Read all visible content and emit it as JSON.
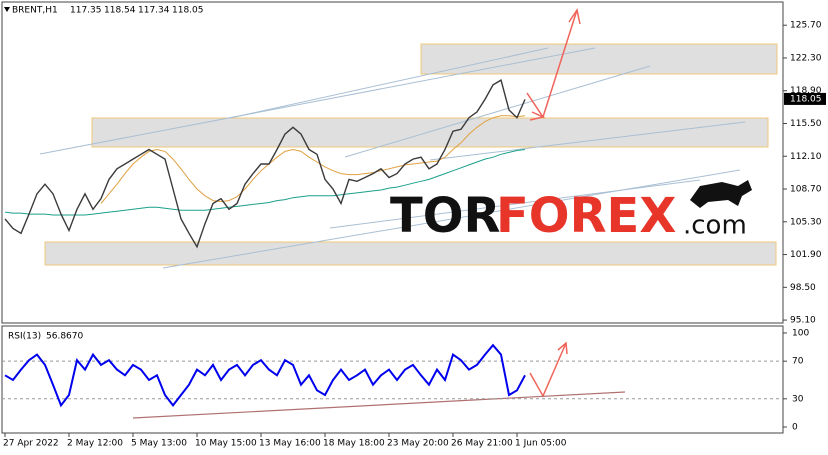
{
  "chart_data": [
    {
      "type": "line",
      "symbol": "BRENT,H1",
      "ohlc": [
        117.35,
        118.54,
        117.34,
        118.05
      ],
      "ylim": [
        94.9,
        127.9
      ],
      "yticks": [
        {
          "value": 125.7,
          "label": "125.70"
        },
        {
          "value": 122.3,
          "label": "122.30"
        },
        {
          "value": 118.9,
          "label": "118.90"
        },
        {
          "value": 115.5,
          "label": "115.50"
        },
        {
          "value": 112.1,
          "label": "112.10"
        },
        {
          "value": 108.7,
          "label": "108.70"
        },
        {
          "value": 105.3,
          "label": "105.30"
        },
        {
          "value": 101.9,
          "label": "101.90"
        },
        {
          "value": 98.5,
          "label": "98.50"
        },
        {
          "value": 95.1,
          "label": "95.10"
        }
      ],
      "series": [
        {
          "color": "#3a3a3a",
          "values": [
            105.6,
            104.6,
            104.1,
            106.1,
            108.2,
            109.2,
            108.2,
            106.1,
            104.4,
            106.6,
            108.2,
            106.6,
            107.7,
            109.7,
            110.8,
            111.3,
            111.8,
            112.3,
            112.8,
            112.3,
            111.8,
            108.7,
            105.6,
            104.1,
            102.7,
            105.1,
            107.2,
            107.7,
            106.6,
            107.2,
            109.2,
            110.3,
            111.3,
            111.3,
            112.8,
            114.4,
            115.1,
            114.4,
            112.8,
            112.3,
            109.7,
            108.7,
            107.2,
            109.7,
            109.5,
            109.9,
            110.3,
            110.8,
            109.9,
            110.3,
            111.3,
            111.8,
            112.0,
            110.8,
            111.3,
            112.8,
            114.7,
            114.9,
            116.1,
            116.7,
            118.0,
            119.5,
            120.0,
            116.9,
            116.1,
            118.0
          ]
        },
        {
          "color": "#e0a040",
          "values": [
            null,
            null,
            null,
            null,
            null,
            null,
            null,
            null,
            null,
            null,
            null,
            null,
            107.2,
            108.2,
            109.2,
            110.3,
            111.3,
            112.0,
            112.6,
            112.8,
            112.6,
            111.8,
            110.8,
            109.7,
            108.7,
            108.0,
            107.5,
            107.4,
            107.5,
            107.9,
            108.7,
            109.7,
            110.6,
            111.3,
            112.0,
            112.6,
            112.8,
            112.6,
            112.0,
            111.5,
            111.0,
            110.6,
            110.3,
            110.2,
            110.2,
            110.3,
            110.4,
            110.6,
            110.8,
            111.0,
            111.2,
            111.3,
            111.4,
            111.5,
            111.6,
            112.0,
            112.8,
            113.5,
            114.4,
            115.1,
            115.7,
            116.1,
            116.3,
            116.3,
            116.2,
            116.3
          ]
        },
        {
          "color": "#1aa08a",
          "values": [
            106.3,
            106.2,
            106.2,
            106.1,
            106.1,
            106.1,
            106.0,
            106.0,
            106.0,
            106.0,
            106.0,
            106.1,
            106.2,
            106.3,
            106.4,
            106.5,
            106.6,
            106.7,
            106.8,
            106.8,
            106.7,
            106.6,
            106.5,
            106.5,
            106.5,
            106.5,
            106.6,
            106.7,
            106.8,
            106.9,
            107.0,
            107.1,
            107.2,
            107.3,
            107.5,
            107.6,
            107.8,
            107.9,
            108.0,
            108.0,
            108.0,
            108.0,
            108.1,
            108.2,
            108.3,
            108.4,
            108.5,
            108.6,
            108.8,
            108.9,
            109.1,
            109.3,
            109.5,
            109.7,
            110.0,
            110.3,
            110.6,
            110.9,
            111.2,
            111.5,
            111.8,
            112.0,
            112.3,
            112.5,
            112.7,
            112.8
          ]
        }
      ],
      "logo": [
        "TOR",
        "FOREX",
        ".com"
      ]
    },
    {
      "type": "line",
      "title": "RSI(13)",
      "last_value": {
        "value": 56.867,
        "label": "56.8670"
      },
      "ylim": [
        -5.3,
        107.4
      ],
      "yticks": [
        100,
        70,
        30,
        0
      ],
      "levels": [
        70,
        30
      ],
      "x": [
        "27 Apr 2022",
        null,
        null,
        null,
        null,
        null,
        null,
        null,
        "2 May 12:00",
        null,
        null,
        null,
        null,
        null,
        null,
        null,
        "5 May 13:00",
        null,
        null,
        null,
        null,
        null,
        null,
        null,
        "10 May 15:00",
        null,
        null,
        null,
        null,
        null,
        null,
        null,
        "13 May 16:00",
        null,
        null,
        null,
        null,
        null,
        null,
        null,
        "18 May 18:00",
        null,
        null,
        null,
        null,
        null,
        null,
        null,
        "23 May 20:00",
        null,
        null,
        null,
        null,
        null,
        null,
        null,
        "26 May 21:00",
        null,
        null,
        null,
        null,
        null,
        null,
        null,
        "1 Jun 05:00",
        null
      ],
      "series": [
        {
          "color": "#0000ee",
          "values": [
            55,
            50,
            61,
            71,
            77,
            66,
            45,
            23,
            34,
            71,
            61,
            77,
            66,
            71,
            61,
            55,
            66,
            61,
            50,
            55,
            34,
            23,
            34,
            45,
            61,
            55,
            66,
            50,
            61,
            66,
            55,
            66,
            71,
            61,
            55,
            71,
            66,
            45,
            55,
            39,
            34,
            50,
            61,
            50,
            55,
            61,
            45,
            55,
            61,
            50,
            61,
            66,
            55,
            45,
            61,
            50,
            77,
            71,
            61,
            66,
            77,
            87,
            77,
            34,
            39,
            55
          ]
        }
      ]
    }
  ]
}
